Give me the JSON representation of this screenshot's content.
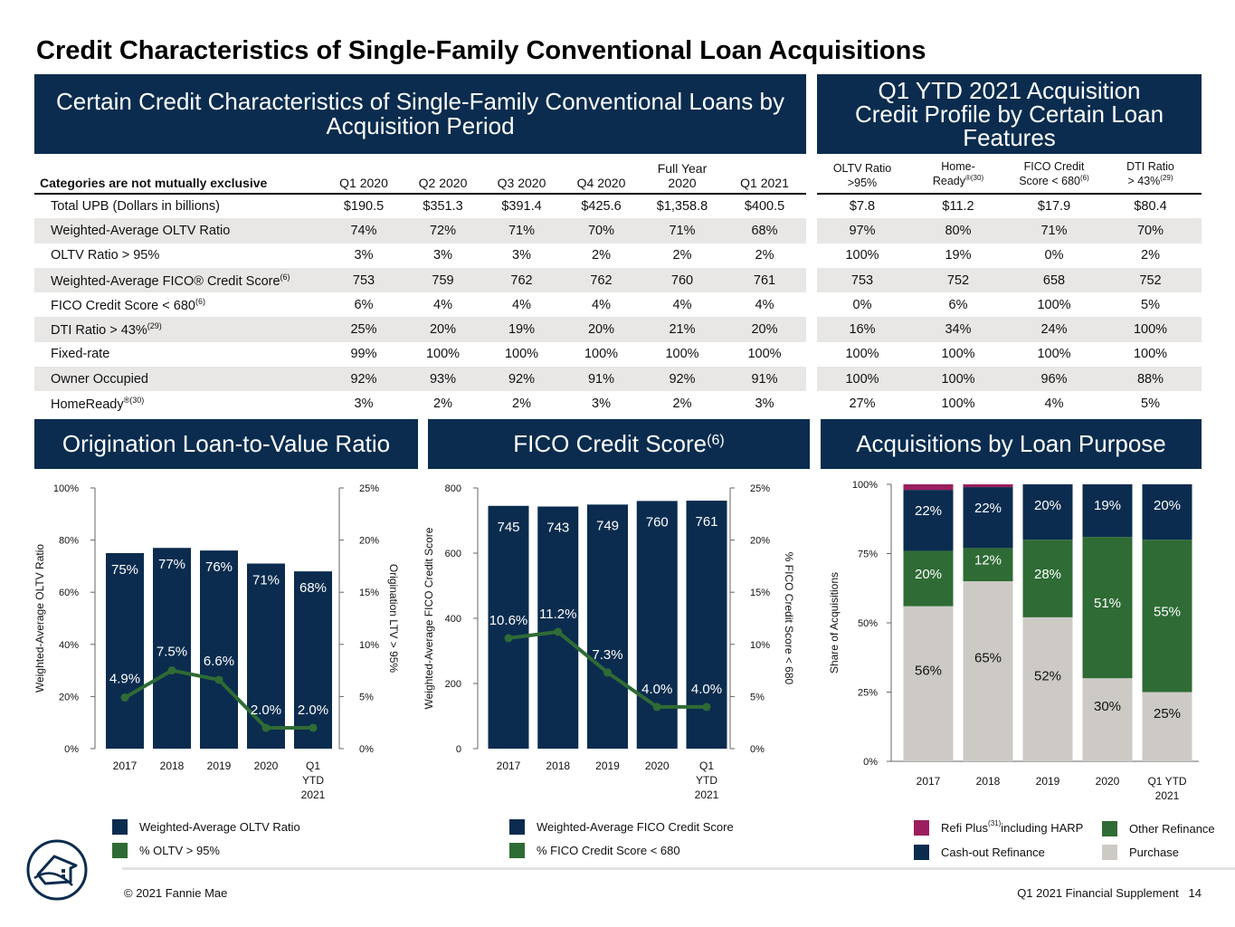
{
  "title": "Credit Characteristics of Single-Family Conventional Loan Acquisitions",
  "colors": {
    "navy": "#0b2c4e",
    "green": "#2f6b35",
    "light_gray": "#cdcac6",
    "magenta": "#9b1f5e",
    "band": "#e8e7e6"
  },
  "tableA": {
    "header": "Certain Credit Characteristics of Single-Family Conventional Loans by Acquisition Period",
    "note": "Categories are not mutually exclusive",
    "columns": [
      "Q1 2020",
      "Q2 2020",
      "Q3 2020",
      "Q4 2020",
      "Full Year 2020",
      "Q1 2021"
    ],
    "rows": [
      {
        "label": "Total UPB (Dollars in billions)",
        "sup": "",
        "values": [
          "$190.5",
          "$351.3",
          "$391.4",
          "$425.6",
          "$1,358.8",
          "$400.5"
        ]
      },
      {
        "label": "Weighted-Average OLTV Ratio",
        "sup": "",
        "values": [
          "74%",
          "72%",
          "71%",
          "70%",
          "71%",
          "68%"
        ]
      },
      {
        "label": "OLTV Ratio > 95%",
        "sup": "",
        "values": [
          "3%",
          "3%",
          "3%",
          "2%",
          "2%",
          "2%"
        ]
      },
      {
        "label": "Weighted-Average FICO® Credit Score",
        "sup": "(6)",
        "values": [
          "753",
          "759",
          "762",
          "762",
          "760",
          "761"
        ]
      },
      {
        "label": "FICO Credit Score < 680",
        "sup": "(6)",
        "values": [
          "6%",
          "4%",
          "4%",
          "4%",
          "4%",
          "4%"
        ]
      },
      {
        "label": "DTI Ratio > 43%",
        "sup": "(29)",
        "values": [
          "25%",
          "20%",
          "19%",
          "20%",
          "21%",
          "20%"
        ]
      },
      {
        "label": "Fixed-rate",
        "sup": "",
        "values": [
          "99%",
          "100%",
          "100%",
          "100%",
          "100%",
          "100%"
        ]
      },
      {
        "label": "Owner Occupied",
        "sup": "",
        "values": [
          "92%",
          "93%",
          "92%",
          "91%",
          "92%",
          "91%"
        ]
      },
      {
        "label": "HomeReady",
        "sup": "®(30)",
        "values": [
          "3%",
          "2%",
          "2%",
          "3%",
          "2%",
          "3%"
        ]
      }
    ]
  },
  "tableB": {
    "header": "Q1 YTD 2021 Acquisition Credit Profile by Certain Loan Features",
    "columns": [
      {
        "l1": "OLTV Ratio",
        "l2": ">95%",
        "sup": ""
      },
      {
        "l1": "Home-",
        "l2": "Ready",
        "sup": "®(30)"
      },
      {
        "l1": "FICO Credit",
        "l2": "Score < 680",
        "sup": "(6)"
      },
      {
        "l1": "DTI Ratio",
        "l2": "> 43%",
        "sup": "(29)"
      }
    ],
    "rows": [
      [
        "$7.8",
        "$11.2",
        "$17.9",
        "$80.4"
      ],
      [
        "97%",
        "80%",
        "71%",
        "70%"
      ],
      [
        "100%",
        "19%",
        "0%",
        "2%"
      ],
      [
        "753",
        "752",
        "658",
        "752"
      ],
      [
        "0%",
        "6%",
        "100%",
        "5%"
      ],
      [
        "16%",
        "34%",
        "24%",
        "100%"
      ],
      [
        "100%",
        "100%",
        "100%",
        "100%"
      ],
      [
        "100%",
        "100%",
        "96%",
        "88%"
      ],
      [
        "27%",
        "100%",
        "4%",
        "5%"
      ]
    ]
  },
  "chart_headers": {
    "oltv": "Origination Loan-to-Value Ratio",
    "fico": "FICO Credit Score",
    "fico_sup": "(6)",
    "purpose": "Acquisitions by Loan Purpose"
  },
  "chart_data": [
    {
      "type": "bar",
      "title": "Origination Loan-to-Value Ratio",
      "categories": [
        [
          "2017"
        ],
        [
          "2018"
        ],
        [
          "2019"
        ],
        [
          "2020"
        ],
        [
          "Q1",
          "YTD",
          "2021"
        ]
      ],
      "ylabel": "Weighted-Average OLTV Ratio",
      "y2label": "Origination LTV > 95%",
      "ylim": [
        0,
        100
      ],
      "y2lim": [
        0,
        25
      ],
      "yticks": [
        "0%",
        "20%",
        "40%",
        "60%",
        "80%",
        "100%"
      ],
      "y2ticks": [
        "0%",
        "5%",
        "10%",
        "15%",
        "20%",
        "25%"
      ],
      "series": [
        {
          "name": "Weighted-Average OLTV Ratio",
          "kind": "bar",
          "axis": "left",
          "values": [
            75,
            77,
            76,
            71,
            68
          ],
          "labels": [
            "75%",
            "77%",
            "76%",
            "71%",
            "68%"
          ]
        },
        {
          "name": "% OLTV > 95%",
          "kind": "line",
          "axis": "right",
          "values": [
            4.9,
            7.5,
            6.6,
            2.0,
            2.0
          ],
          "labels": [
            "4.9%",
            "7.5%",
            "6.6%",
            "2.0%",
            "2.0%"
          ]
        }
      ]
    },
    {
      "type": "bar",
      "title": "FICO Credit Score",
      "categories": [
        [
          "2017"
        ],
        [
          "2018"
        ],
        [
          "2019"
        ],
        [
          "2020"
        ],
        [
          "Q1",
          "YTD",
          "2021"
        ]
      ],
      "ylabel": "Weighted-Average FICO Credit Score",
      "y2label": "% FICO Credit Score < 680",
      "ylim": [
        0,
        800
      ],
      "y2lim": [
        0,
        25
      ],
      "yticks": [
        "0",
        "200",
        "400",
        "600",
        "800"
      ],
      "y2ticks": [
        "0%",
        "5%",
        "10%",
        "15%",
        "20%",
        "25%"
      ],
      "series": [
        {
          "name": "Weighted-Average FICO Credit Score",
          "kind": "bar",
          "axis": "left",
          "values": [
            745,
            743,
            749,
            760,
            761
          ],
          "labels": [
            "745",
            "743",
            "749",
            "760",
            "761"
          ]
        },
        {
          "name": "% FICO Credit Score < 680",
          "kind": "line",
          "axis": "right",
          "values": [
            10.6,
            11.2,
            7.3,
            4.0,
            4.0
          ],
          "labels": [
            "10.6%",
            "11.2%",
            "7.3%",
            "4.0%",
            "4.0%"
          ]
        }
      ]
    },
    {
      "type": "bar",
      "stacked": true,
      "title": "Acquisitions by Loan Purpose",
      "categories": [
        [
          "2017"
        ],
        [
          "2018"
        ],
        [
          "2019"
        ],
        [
          "2020"
        ],
        [
          "Q1 YTD",
          "2021"
        ]
      ],
      "ylabel": "Share of Acquisitions",
      "ylim": [
        0,
        100
      ],
      "yticks": [
        "0%",
        "25%",
        "50%",
        "75%",
        "100%"
      ],
      "series": [
        {
          "name": "Purchase",
          "values": [
            56,
            65,
            52,
            30,
            25
          ],
          "labels": [
            "56%",
            "65%",
            "52%",
            "30%",
            "25%"
          ]
        },
        {
          "name": "Other Refinance",
          "values": [
            20,
            12,
            28,
            51,
            55
          ],
          "labels": [
            "20%",
            "12%",
            "28%",
            "51%",
            "55%"
          ]
        },
        {
          "name": "Cash-out Refinance",
          "values": [
            22,
            22,
            20,
            19,
            20
          ],
          "labels": [
            "22%",
            "22%",
            "20%",
            "19%",
            "20%"
          ]
        },
        {
          "name": "Refi Plus including HARP",
          "values": [
            2,
            1,
            0,
            0,
            0
          ],
          "labels": [
            "",
            "",
            "",
            "",
            ""
          ]
        }
      ]
    }
  ],
  "legends": {
    "oltv": [
      "Weighted-Average OLTV Ratio",
      "% OLTV > 95%"
    ],
    "fico": [
      "Weighted-Average FICO Credit Score",
      "% FICO Credit Score < 680"
    ],
    "purpose": {
      "refi": "Refi Plus",
      "refi_sup": "(31)",
      "refi_tail": " including HARP",
      "cashout": "Cash-out Refinance",
      "other": "Other Refinance",
      "purchase": "Purchase"
    }
  },
  "footer": {
    "copyright": "© 2021 Fannie Mae",
    "supplement": "Q1 2021 Financial Supplement   14"
  }
}
